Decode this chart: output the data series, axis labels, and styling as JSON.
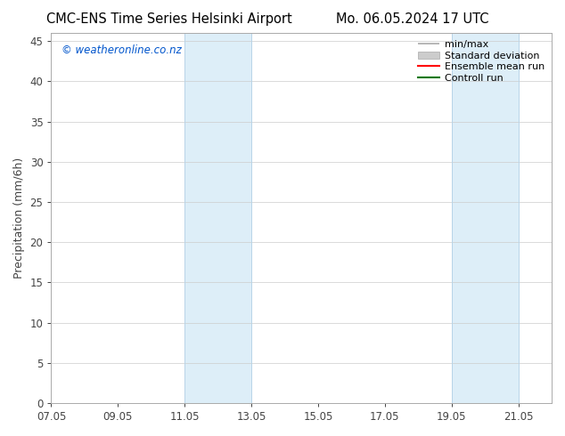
{
  "title_left": "CMC-ENS Time Series Helsinki Airport",
  "title_right": "Mo. 06.05.2024 17 UTC",
  "ylabel": "Precipitation (mm/6h)",
  "xlim": [
    0,
    15
  ],
  "ylim": [
    0,
    46
  ],
  "yticks": [
    0,
    5,
    10,
    15,
    20,
    25,
    30,
    35,
    40,
    45
  ],
  "xtick_labels": [
    "07.05",
    "09.05",
    "11.05",
    "13.05",
    "15.05",
    "17.05",
    "19.05",
    "21.05"
  ],
  "xtick_positions": [
    0,
    2,
    4,
    6,
    8,
    10,
    12,
    14
  ],
  "shaded_regions": [
    {
      "xmin": 4.0,
      "xmax": 6.0
    },
    {
      "xmin": 12.0,
      "xmax": 14.0
    }
  ],
  "shaded_color": "#ddeef8",
  "shaded_edge_color": "#b8d4e8",
  "watermark_text": "© weatheronline.co.nz",
  "watermark_color": "#0055cc",
  "legend_items": [
    {
      "label": "min/max",
      "color": "#aaaaaa",
      "lw": 1.2
    },
    {
      "label": "Standard deviation",
      "color": "#cccccc",
      "lw": 6
    },
    {
      "label": "Ensemble mean run",
      "color": "#ff0000",
      "lw": 1.5
    },
    {
      "label": "Controll run",
      "color": "#007700",
      "lw": 1.5
    }
  ],
  "bg_color": "#ffffff",
  "plot_bg_color": "#ffffff",
  "grid_color": "#cccccc",
  "spine_color": "#aaaaaa",
  "tick_color": "#444444",
  "title_fontsize": 10.5,
  "axis_label_fontsize": 9,
  "tick_fontsize": 8.5,
  "watermark_fontsize": 8.5,
  "legend_fontsize": 8
}
